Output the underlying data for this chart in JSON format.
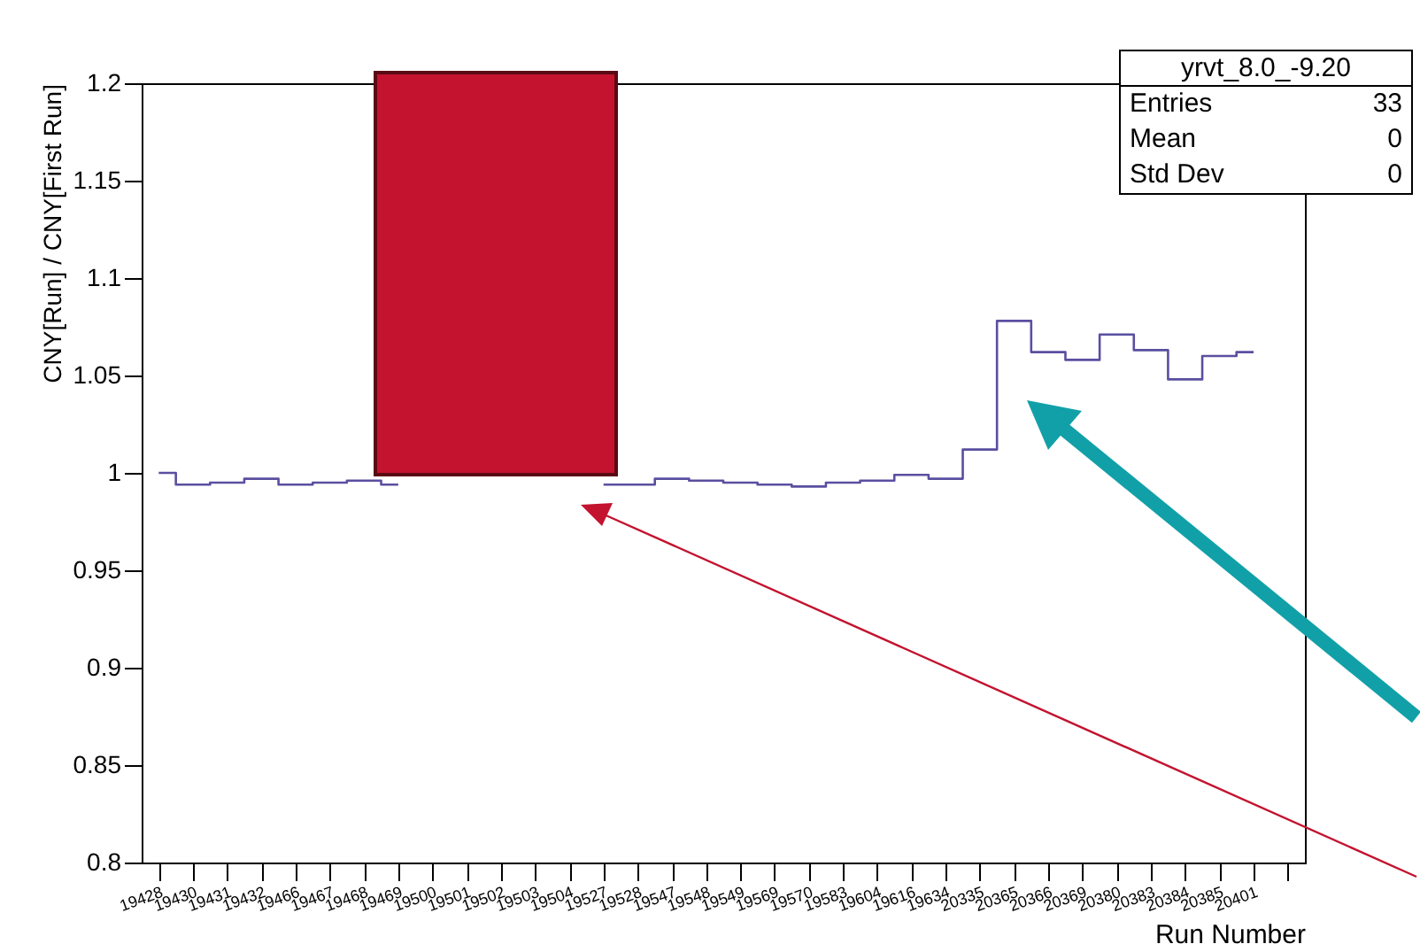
{
  "chart_data": {
    "type": "step",
    "xlabel": "Run Number",
    "ylabel": "CNY[Run] / CNY[First Run]",
    "categories": [
      "19428",
      "19430",
      "19431",
      "19432",
      "19466",
      "19467",
      "19468",
      "19469",
      "19500",
      "19501",
      "19502",
      "19503",
      "19504",
      "19527",
      "19528",
      "19547",
      "19548",
      "19549",
      "19569",
      "19570",
      "19583",
      "19604",
      "19616",
      "19634",
      "20335",
      "20365",
      "20366",
      "20369",
      "20380",
      "20383",
      "20384",
      "20385",
      "20401",
      null
    ],
    "series": [
      {
        "color": "#5a4fa0",
        "values": [
          1.0,
          0.994,
          0.995,
          0.997,
          0.994,
          0.995,
          0.996,
          0.994,
          null,
          null,
          null,
          null,
          null,
          0.994,
          0.994,
          0.997,
          0.996,
          0.995,
          0.994,
          0.993,
          0.995,
          0.996,
          0.999,
          0.997,
          1.012,
          1.078,
          1.062,
          1.058,
          1.071,
          1.063,
          1.048,
          1.06,
          1.062,
          null
        ]
      }
    ],
    "ylim": [
      0.8,
      1.2
    ],
    "yticks": [
      0.8,
      0.85,
      0.9,
      0.95,
      1,
      1.05,
      1.1,
      1.15,
      1.2
    ],
    "grid": false,
    "annotations": [
      "yrvt_8.0_-9.20",
      "Entries 33",
      "Mean 0",
      "Std Dev 0"
    ]
  }
}
